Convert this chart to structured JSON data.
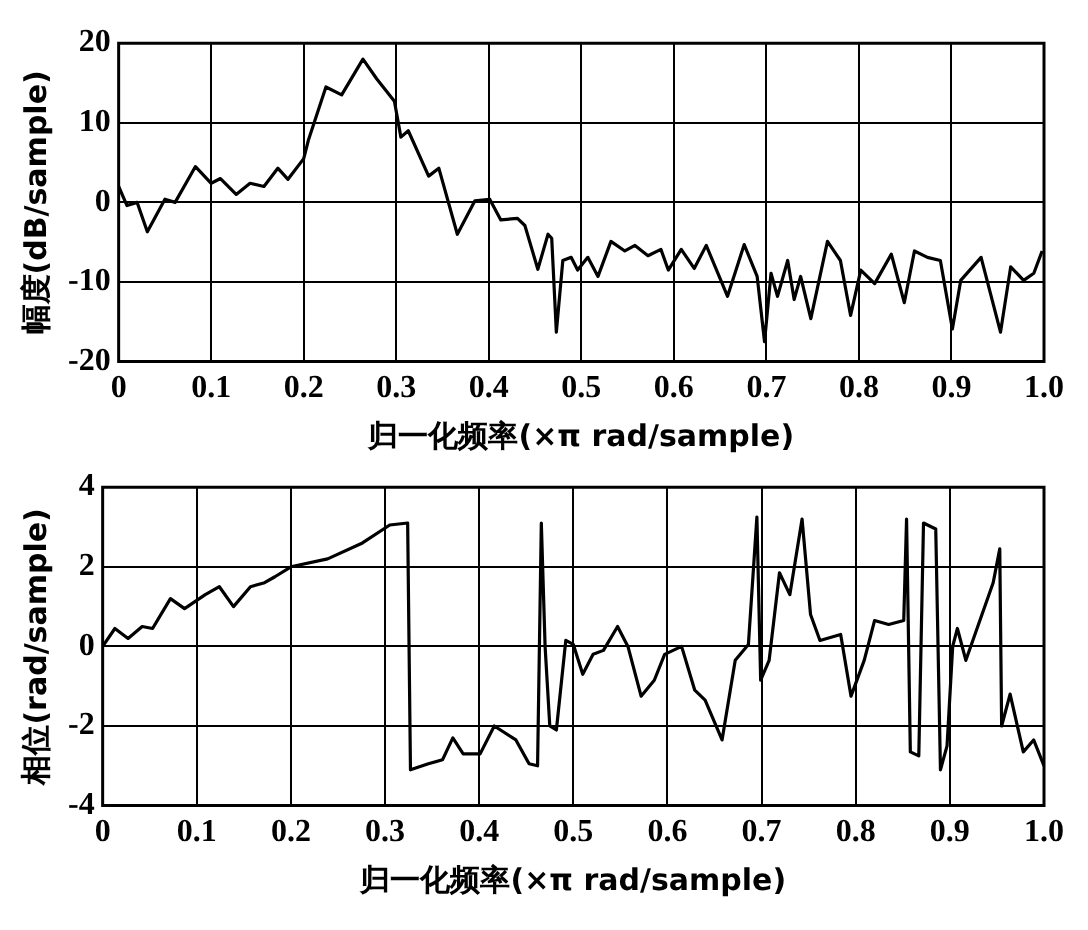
{
  "chart_data": [
    {
      "type": "line",
      "xlabel": "归一化频率(×π rad/sample)",
      "ylabel": "幅度(dB/sample)",
      "xlim": [
        0,
        1
      ],
      "ylim": [
        -20,
        20
      ],
      "xticks": [
        0,
        0.1,
        0.2,
        0.3,
        0.4,
        0.5,
        0.6,
        0.7,
        0.8,
        0.9,
        {
          "value": 1,
          "label": "1.0"
        }
      ],
      "yticks": [
        -20,
        -10,
        0,
        10,
        20
      ],
      "grid": true,
      "legend": false,
      "marker": "none",
      "line_style": "solid",
      "series": [
        {
          "color": "#000000",
          "x": [
            0,
            0.009,
            0.02,
            0.031,
            0.05,
            0.061,
            0.083,
            0.1,
            0.11,
            0.127,
            0.142,
            0.157,
            0.172,
            0.183,
            0.2,
            0.205,
            0.224,
            0.241,
            0.264,
            0.279,
            0.298,
            0.305,
            0.313,
            0.335,
            0.346,
            0.366,
            0.385,
            0.401,
            0.413,
            0.431,
            0.439,
            0.453,
            0.464,
            0.468,
            0.473,
            0.48,
            0.489,
            0.496,
            0.507,
            0.518,
            0.532,
            0.547,
            0.558,
            0.572,
            0.586,
            0.594,
            0.608,
            0.622,
            0.635,
            0.658,
            0.676,
            0.69,
            0.698,
            0.705,
            0.712,
            0.723,
            0.73,
            0.737,
            0.748,
            0.766,
            0.78,
            0.791,
            0.802,
            0.817,
            0.835,
            0.849,
            0.86,
            0.874,
            0.888,
            0.901,
            0.91,
            0.932,
            0.953,
            0.964,
            0.978,
            0.989,
            0.998
          ],
          "values": [
            2,
            -0.4,
            0,
            -3.7,
            0.4,
            0,
            4.5,
            2.4,
            3,
            1,
            2.4,
            2,
            4.3,
            2.9,
            5.5,
            7.8,
            14.5,
            13.5,
            18,
            15.5,
            12.7,
            8.2,
            9,
            3.3,
            4.3,
            -4,
            0.2,
            0.4,
            -2.2,
            -2,
            -2.9,
            -8.4,
            -4,
            -4.5,
            -16.3,
            -7.3,
            -6.9,
            -8.5,
            -6.9,
            -9.3,
            -4.9,
            -6.1,
            -5.4,
            -6.7,
            -5.9,
            -8.5,
            -5.9,
            -8.3,
            -5.4,
            -11.8,
            -5.3,
            -9.3,
            -17.5,
            -8.9,
            -11.8,
            -7.3,
            -12.2,
            -9.3,
            -14.6,
            -4.9,
            -7.3,
            -14.2,
            -8.5,
            -10.2,
            -6.5,
            -12.6,
            -6.1,
            -6.9,
            -7.3,
            -15.9,
            -9.8,
            -6.9,
            -16.3,
            -8.1,
            -9.8,
            -8.9,
            -6.1
          ]
        }
      ]
    },
    {
      "type": "line",
      "xlabel": "归一化频率(×π rad/sample)",
      "ylabel": "相位(rad/sample)",
      "xlim": [
        0,
        1
      ],
      "ylim": [
        -4,
        4
      ],
      "xticks": [
        0,
        0.1,
        0.2,
        0.3,
        0.4,
        0.5,
        0.6,
        0.7,
        0.8,
        0.9,
        {
          "value": 1,
          "label": "1.0"
        }
      ],
      "yticks": [
        -4,
        -2,
        0,
        2,
        4
      ],
      "grid": true,
      "legend": false,
      "marker": "none",
      "line_style": "solid",
      "series": [
        {
          "color": "#000000",
          "x": [
            0,
            0.013,
            0.027,
            0.042,
            0.053,
            0.072,
            0.087,
            0.109,
            0.124,
            0.139,
            0.157,
            0.172,
            0.183,
            0.2,
            0.239,
            0.276,
            0.305,
            0.324,
            0.327,
            0.346,
            0.361,
            0.372,
            0.383,
            0.401,
            0.416,
            0.439,
            0.453,
            0.462,
            0.466,
            0.47,
            0.475,
            0.482,
            0.492,
            0.5,
            0.51,
            0.521,
            0.532,
            0.547,
            0.558,
            0.572,
            0.586,
            0.597,
            0.615,
            0.629,
            0.64,
            0.658,
            0.672,
            0.686,
            0.695,
            0.699,
            0.708,
            0.719,
            0.73,
            0.743,
            0.752,
            0.762,
            0.784,
            0.795,
            0.809,
            0.82,
            0.835,
            0.851,
            0.854,
            0.858,
            0.867,
            0.872,
            0.885,
            0.89,
            0.897,
            0.903,
            0.908,
            0.917,
            0.946,
            0.953,
            0.955,
            0.964,
            0.978,
            0.989,
            1
          ],
          "values": [
            0,
            0.45,
            0.2,
            0.5,
            0.45,
            1.2,
            0.95,
            1.3,
            1.5,
            1,
            1.5,
            1.6,
            1.75,
            2,
            2.2,
            2.6,
            3.05,
            3.1,
            -3.1,
            -2.95,
            -2.85,
            -2.3,
            -2.7,
            -2.7,
            -2,
            -2.35,
            -2.95,
            -3,
            3.1,
            0,
            -2,
            -2.1,
            0.15,
            0.05,
            -0.7,
            -0.2,
            -0.1,
            0.5,
            0,
            -1.25,
            -0.85,
            -0.2,
            0,
            -1.1,
            -1.35,
            -2.35,
            -0.35,
            0.05,
            3.25,
            -0.85,
            -0.35,
            1.85,
            1.3,
            3.2,
            0.8,
            0.15,
            0.3,
            -1.25,
            -0.35,
            0.65,
            0.55,
            0.65,
            3.2,
            -2.65,
            -2.75,
            3.1,
            2.95,
            -3.1,
            -2.5,
            0,
            0.45,
            -0.35,
            1.6,
            2.45,
            -2,
            -1.2,
            -2.65,
            -2.35,
            -3
          ]
        }
      ]
    }
  ]
}
